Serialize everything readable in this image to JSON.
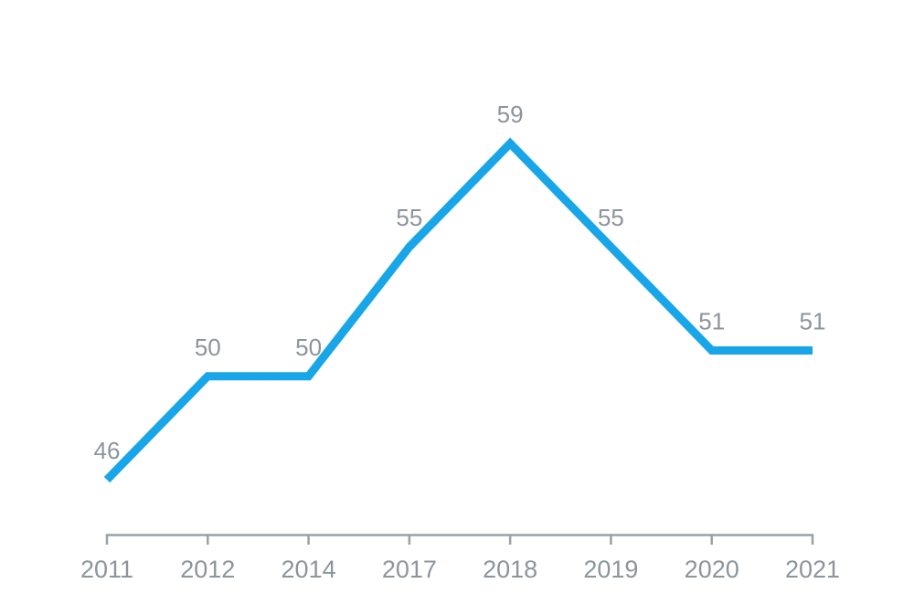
{
  "page": {
    "background_color": "#ffffff"
  },
  "chart_data": {
    "type": "line",
    "categories": [
      "2011",
      "2012",
      "2014",
      "2017",
      "2018",
      "2019",
      "2020",
      "2021"
    ],
    "values": [
      46,
      50,
      50,
      55,
      59,
      55,
      51,
      51
    ],
    "data_labels": [
      "46",
      "50",
      "50",
      "55",
      "59",
      "55",
      "51",
      "51"
    ],
    "title": "",
    "xlabel": "",
    "ylabel": "",
    "grid": false,
    "legend": false,
    "y_axis_shown": false,
    "x_axis_shown": true,
    "line_color": "#18a6e8",
    "label_color": "#8c959c",
    "axis_color": "#9aa0a6"
  }
}
